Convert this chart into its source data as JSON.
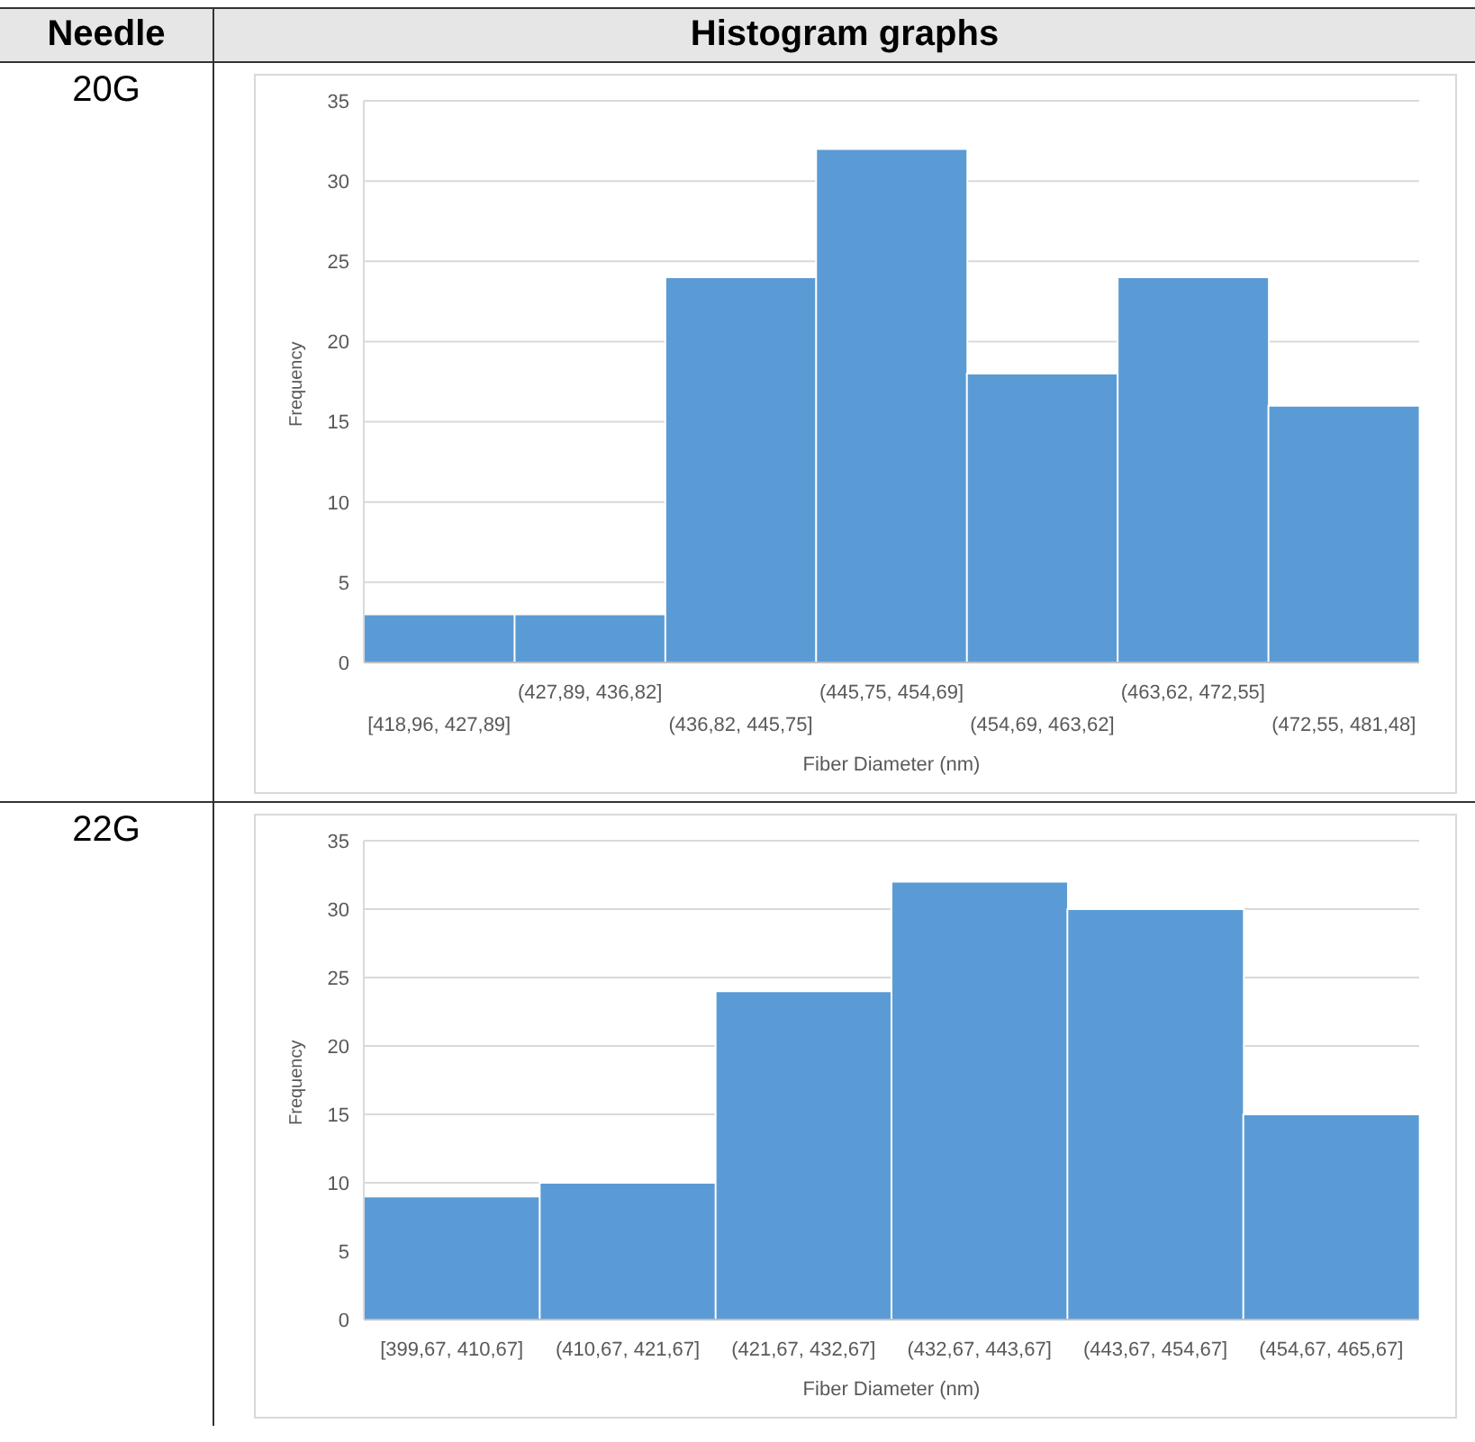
{
  "chart_data": [
    {
      "type": "bar",
      "title": "20G",
      "annotations": [
        "Needle",
        "Histogram graphs"
      ],
      "xlabel": "Fiber Diameter (nm)",
      "ylabel": "Frequency",
      "categories": [
        "[418,96, 427,89]",
        "(427,89, 436,82]",
        "(436,82, 445,75]",
        "(445,75, 454,69]",
        "(454,69, 463,62]",
        "(463,62, 472,55]",
        "(472,55, 481,48]"
      ],
      "values": [
        3,
        3,
        24,
        32,
        18,
        24,
        16
      ],
      "color": "#5b9bd5",
      "ylim": [
        0,
        35
      ],
      "yticks": [
        0,
        5,
        10,
        15,
        20,
        25,
        30,
        35
      ],
      "grid": "y"
    },
    {
      "type": "bar",
      "title": "22G",
      "xlabel": "Fiber Diameter (nm)",
      "ylabel": "Frequency",
      "categories": [
        "[399,67, 410,67]",
        "(410,67, 421,67]",
        "(421,67, 432,67]",
        "(432,67, 443,67]",
        "(443,67, 454,67]",
        "(454,67, 465,67]"
      ],
      "values": [
        9,
        10,
        24,
        32,
        30,
        15
      ],
      "color": "#5b9bd5",
      "ylim": [
        0,
        35
      ],
      "yticks": [
        0,
        5,
        10,
        15,
        20,
        25,
        30,
        35
      ],
      "grid": "y"
    }
  ]
}
